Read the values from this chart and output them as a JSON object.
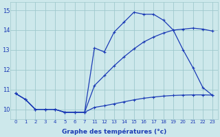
{
  "xlabel": "Graphe des températures (°c)",
  "bg_color": "#cde8eb",
  "grid_color": "#9ec8cc",
  "line_color": "#1a3ab5",
  "x_indices": [
    0,
    1,
    2,
    3,
    4,
    5,
    6,
    7,
    8,
    9,
    10,
    11,
    12,
    13,
    14,
    15,
    16,
    17,
    18,
    19,
    20
  ],
  "x_labels": [
    "0",
    "1",
    "2",
    "3",
    "4",
    "5",
    "6",
    "7",
    "11",
    "12",
    "13",
    "14",
    "15",
    "16",
    "17",
    "18",
    "19",
    "20",
    "21",
    "22",
    "23"
  ],
  "line1_y": [
    10.8,
    10.5,
    10.0,
    10.0,
    10.0,
    9.85,
    9.85,
    9.85,
    13.1,
    12.9,
    13.9,
    14.4,
    14.9,
    14.8,
    14.8,
    14.5,
    14.0,
    13.0,
    12.1,
    11.1,
    10.7
  ],
  "line2_y": [
    10.8,
    10.5,
    10.0,
    10.0,
    10.0,
    9.85,
    9.85,
    9.85,
    11.2,
    11.7,
    12.2,
    12.65,
    13.05,
    13.4,
    13.65,
    13.85,
    14.0,
    14.05,
    14.1,
    14.05,
    13.95
  ],
  "line3_y": [
    10.8,
    10.5,
    10.0,
    10.0,
    10.0,
    9.85,
    9.85,
    9.85,
    10.1,
    10.18,
    10.28,
    10.38,
    10.48,
    10.56,
    10.62,
    10.67,
    10.7,
    10.72,
    10.73,
    10.73,
    10.72
  ],
  "ylim": [
    9.5,
    15.4
  ],
  "yticks": [
    10,
    11,
    12,
    13,
    14,
    15
  ],
  "marker": "+"
}
